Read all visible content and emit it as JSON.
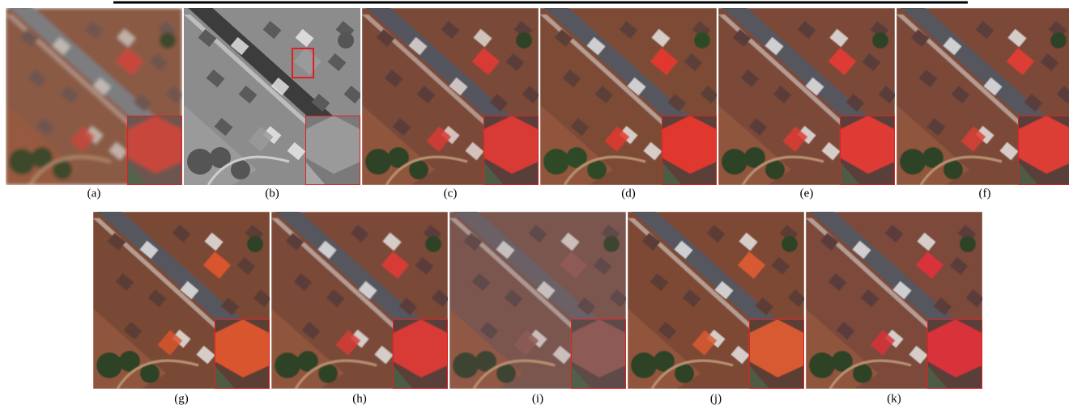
{
  "figure": {
    "panels": [
      {
        "label": "(a)"
      },
      {
        "label": "(b)"
      },
      {
        "label": "(c)"
      },
      {
        "label": "(d)"
      },
      {
        "label": "(e)"
      },
      {
        "label": "(f)"
      },
      {
        "label": "(g)"
      },
      {
        "label": "(h)"
      },
      {
        "label": "(i)"
      },
      {
        "label": "(j)"
      },
      {
        "label": "(k)"
      }
    ]
  }
}
